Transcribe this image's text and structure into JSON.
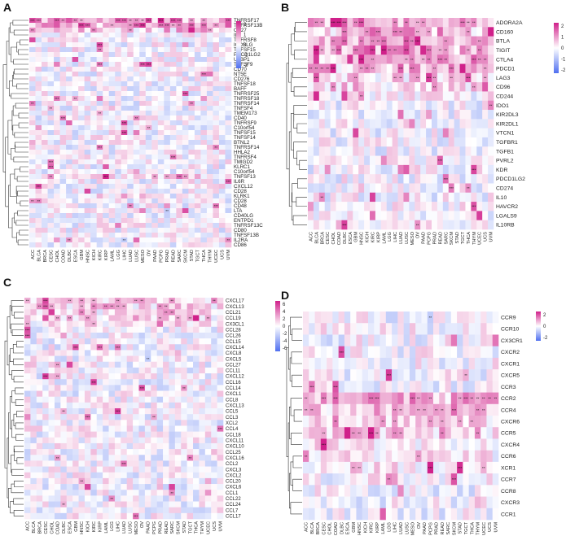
{
  "colors": {
    "low": "#4f6ff0",
    "mid": "#ffffff",
    "high": "#d0208a"
  },
  "chart_data": [
    {
      "type": "heatmap",
      "panel": "A",
      "legend_ticks": [
        "2",
        "1",
        "0",
        "-1",
        "-2"
      ],
      "color_range": [
        -2.5,
        2.5
      ],
      "columns": [
        "ACC",
        "BLCA",
        "BRCA",
        "CESC",
        "CHOL",
        "COAD",
        "DLBC",
        "ESCA",
        "GBM",
        "HNSC",
        "KICH",
        "KIRC",
        "KIRP",
        "LAML",
        "LGG",
        "LIHC",
        "LUAD",
        "LUSC",
        "MESO",
        "OV",
        "PAAD",
        "PCPG",
        "PRAD",
        "READ",
        "SARC",
        "SKCM",
        "STAD",
        "TGCT",
        "THCA",
        "THYM",
        "UCEC",
        "UCS",
        "UVM"
      ],
      "rows": [
        "TNFRSF17",
        "TNFRSF13B",
        "CD27",
        "IL6",
        "TNFRSF8",
        "ICOSLG",
        "TNFSF15",
        "PDCD1LG2",
        "ULBP1",
        "TNFSF9",
        "CD70",
        "NT5E",
        "CD276",
        "TNFSF18",
        "BAFF",
        "TNFRSF25",
        "TNFRSF18",
        "TNFRSF14",
        "TNFSF4",
        "TMEM173",
        "CD40",
        "TNFRSF9",
        "C10orf54",
        "TNFSF15",
        "TNFSF14",
        "BTNL2",
        "TNFRSF14",
        "HHLA2",
        "TNFRSF4",
        "TMIGD2",
        "KLRC1",
        "C10orf54",
        "TNFSF13",
        "IL6R",
        "CXCL12",
        "CD28",
        "KLRK1",
        "CD28",
        "CD48",
        "LTA",
        "CD40LG",
        "ENTPD1",
        "TNFRSF13C",
        "CD80",
        "TNFSF13B",
        "IL2RA",
        "CD86"
      ]
    },
    {
      "type": "heatmap",
      "panel": "B",
      "legend_ticks": [
        "2",
        "1",
        "0",
        "-1",
        "-2"
      ],
      "color_range": [
        -2.5,
        2.5
      ],
      "columns": [
        "ACC",
        "BLCA",
        "BRCA",
        "CESC",
        "CHOL",
        "COAD",
        "DLBC",
        "ESCA",
        "GBM",
        "HNSC",
        "KICH",
        "KIRC",
        "KIRP",
        "LAML",
        "LGG",
        "LIHC",
        "LUAD",
        "LUSC",
        "MESO",
        "OV",
        "PAAD",
        "PCPG",
        "PRAD",
        "READ",
        "SARC",
        "SKCM",
        "STAD",
        "TGCT",
        "THCA",
        "THYM",
        "UCEC",
        "UCS",
        "UVM"
      ],
      "rows": [
        "ADORA2A",
        "CD160",
        "BTLA",
        "TIGIT",
        "CTLA4",
        "PDCD1",
        "LAG3",
        "CD96",
        "CD244",
        "IDO1",
        "KIR2DL3",
        "KIR2DL1",
        "VTCN1",
        "TGFBR1",
        "TGFB1",
        "PVRL2",
        "KDR",
        "PDCD1LG2",
        "CD274",
        "IL10",
        "HAVCR2",
        "LGALS9",
        "IL10RB"
      ]
    },
    {
      "type": "heatmap",
      "panel": "C",
      "legend_ticks": [
        "6",
        "4",
        "2",
        "0",
        "-2",
        "-4",
        "-6"
      ],
      "color_range": [
        -6,
        6
      ],
      "columns": [
        "ACC",
        "BLCA",
        "BRCA",
        "CESC",
        "CHOL",
        "COAD",
        "DLBC",
        "ESCA",
        "GBM",
        "HNSC",
        "KICH",
        "KIRC",
        "KIRP",
        "LAML",
        "LGG",
        "LIHC",
        "LUAD",
        "LUSC",
        "MESO",
        "OV",
        "PAAD",
        "PCPG",
        "PRAD",
        "READ",
        "SARC",
        "SKCM",
        "STAD",
        "TGCT",
        "THCA",
        "THYM",
        "UCEC",
        "UCS",
        "UVM"
      ],
      "rows": [
        "CXCL17",
        "CXCL13",
        "CCL21",
        "CCL19",
        "CX3CL1",
        "CCL28",
        "CCL26",
        "CCL15",
        "CXCL14",
        "CXCL8",
        "CXCL5",
        "CCL27",
        "CCL11",
        "CXCL12",
        "CCL16",
        "CCL14",
        "CXCL1",
        "CCL8",
        "CXCL13",
        "CCL5",
        "CCL3",
        "XCL2",
        "CCL4",
        "CCL18",
        "CXCL11",
        "CXCL10",
        "CCL25",
        "CXCL16",
        "CCL2",
        "CXCL3",
        "CXCL2",
        "CCL20",
        "CXCL6",
        "CCL1",
        "CCL22",
        "CCL24",
        "CCL7",
        "CCL17"
      ]
    },
    {
      "type": "heatmap",
      "panel": "D",
      "legend_ticks": [
        "2",
        "0",
        "-2"
      ],
      "color_range": [
        -3,
        3
      ],
      "columns": [
        "ACC",
        "BLCA",
        "BRCA",
        "CESC",
        "CHOL",
        "COAD",
        "DLBC",
        "ESCA",
        "GBM",
        "HNSC",
        "KICH",
        "KIRC",
        "KIRP",
        "LAML",
        "LGG",
        "LIHC",
        "LUAD",
        "LUSC",
        "MESO",
        "OV",
        "PAAD",
        "PCPG",
        "PRAD",
        "READ",
        "SARC",
        "SKCM",
        "STAD",
        "TGCT",
        "THCA",
        "THYM",
        "UCEC",
        "UCS",
        "UVM"
      ],
      "rows": [
        "CCR9",
        "CCR10",
        "CX3CR1",
        "CXCR2",
        "CXCR1",
        "CXCR5",
        "CCR3",
        "CCR2",
        "CCR4",
        "CXCR6",
        "CCR5",
        "CXCR4",
        "CCR6",
        "XCR1",
        "CCR7",
        "CCR8",
        "CXCR3",
        "CCR1"
      ]
    }
  ]
}
